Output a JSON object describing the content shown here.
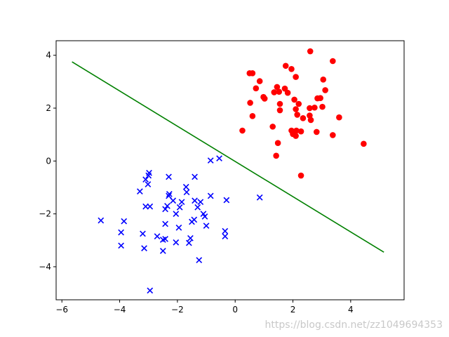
{
  "chart_data": {
    "type": "scatter",
    "title": "",
    "xlabel": "",
    "ylabel": "",
    "xlim": [
      -6.2,
      5.85
    ],
    "ylim": [
      -5.25,
      4.55
    ],
    "xticks": [
      -6,
      -4,
      -2,
      0,
      2,
      4
    ],
    "yticks": [
      -4,
      -2,
      0,
      2,
      4
    ],
    "grid": false,
    "legend": "none",
    "series": [
      {
        "marker": "circle",
        "color": "#ff0000",
        "points": [
          [
            2.6,
            4.15
          ],
          [
            0.5,
            3.32
          ],
          [
            0.6,
            3.32
          ],
          [
            1.75,
            3.6
          ],
          [
            1.95,
            3.48
          ],
          [
            2.1,
            3.18
          ],
          [
            3.38,
            3.78
          ],
          [
            0.85,
            3.02
          ],
          [
            3.05,
            3.08
          ],
          [
            0.72,
            2.75
          ],
          [
            1.45,
            2.8
          ],
          [
            1.72,
            2.74
          ],
          [
            1.35,
            2.6
          ],
          [
            1.52,
            2.62
          ],
          [
            1.82,
            2.58
          ],
          [
            3.12,
            2.68
          ],
          [
            0.98,
            2.42
          ],
          [
            1.02,
            2.36
          ],
          [
            2.05,
            2.32
          ],
          [
            2.85,
            2.37
          ],
          [
            2.95,
            2.38
          ],
          [
            0.52,
            2.2
          ],
          [
            1.55,
            2.16
          ],
          [
            2.2,
            2.16
          ],
          [
            2.75,
            2.02
          ],
          [
            2.58,
            2.0
          ],
          [
            2.1,
            1.96
          ],
          [
            3.02,
            2.05
          ],
          [
            1.55,
            1.92
          ],
          [
            2.58,
            1.72
          ],
          [
            2.15,
            1.75
          ],
          [
            3.6,
            1.65
          ],
          [
            0.6,
            1.7
          ],
          [
            2.35,
            1.62
          ],
          [
            2.62,
            1.55
          ],
          [
            1.3,
            1.3
          ],
          [
            0.25,
            1.15
          ],
          [
            1.95,
            1.15
          ],
          [
            2.12,
            1.15
          ],
          [
            2.28,
            1.12
          ],
          [
            2.82,
            1.1
          ],
          [
            2.0,
            1.02
          ],
          [
            2.1,
            0.95
          ],
          [
            3.38,
            0.98
          ],
          [
            1.48,
            0.68
          ],
          [
            4.45,
            0.65
          ],
          [
            1.42,
            0.2
          ],
          [
            2.28,
            -0.55
          ]
        ]
      },
      {
        "marker": "x",
        "color": "#0000ff",
        "points": [
          [
            -0.55,
            0.1
          ],
          [
            -0.85,
            0.02
          ],
          [
            -2.98,
            -0.45
          ],
          [
            -3.0,
            -0.55
          ],
          [
            -3.1,
            -0.7
          ],
          [
            -1.4,
            -0.6
          ],
          [
            -2.3,
            -0.6
          ],
          [
            -3.02,
            -0.88
          ],
          [
            -1.7,
            -0.98
          ],
          [
            -3.3,
            -1.15
          ],
          [
            -1.68,
            -1.18
          ],
          [
            -2.28,
            -1.25
          ],
          [
            -2.3,
            -1.32
          ],
          [
            -0.85,
            -1.32
          ],
          [
            -1.4,
            -1.5
          ],
          [
            -1.2,
            -1.55
          ],
          [
            -2.15,
            -1.5
          ],
          [
            -1.85,
            -1.55
          ],
          [
            -0.3,
            -1.48
          ],
          [
            0.85,
            -1.38
          ],
          [
            -3.1,
            -1.72
          ],
          [
            -2.95,
            -1.72
          ],
          [
            -2.42,
            -1.82
          ],
          [
            -2.35,
            -1.7
          ],
          [
            -1.92,
            -1.75
          ],
          [
            -1.3,
            -1.75
          ],
          [
            -2.05,
            -2.0
          ],
          [
            -1.1,
            -2.0
          ],
          [
            -1.05,
            -2.1
          ],
          [
            -4.65,
            -2.25
          ],
          [
            -3.85,
            -2.28
          ],
          [
            -1.5,
            -2.3
          ],
          [
            -1.42,
            -2.22
          ],
          [
            -2.42,
            -2.38
          ],
          [
            -1.95,
            -2.52
          ],
          [
            -1.0,
            -2.45
          ],
          [
            -0.35,
            -2.65
          ],
          [
            -3.95,
            -2.7
          ],
          [
            -3.2,
            -2.75
          ],
          [
            -0.35,
            -2.85
          ],
          [
            -2.7,
            -2.85
          ],
          [
            -2.5,
            -2.98
          ],
          [
            -2.42,
            -2.95
          ],
          [
            -1.55,
            -2.92
          ],
          [
            -3.95,
            -3.2
          ],
          [
            -2.05,
            -3.08
          ],
          [
            -1.6,
            -3.1
          ],
          [
            -3.15,
            -3.3
          ],
          [
            -2.5,
            -3.4
          ],
          [
            -1.25,
            -3.75
          ],
          [
            -2.95,
            -4.9
          ]
        ]
      },
      {
        "marker": "line",
        "color": "#008000",
        "points": [
          [
            -5.65,
            3.75
          ],
          [
            5.15,
            -3.45
          ]
        ]
      }
    ]
  },
  "watermark": "https://blog.csdn.net/zz1049694353"
}
